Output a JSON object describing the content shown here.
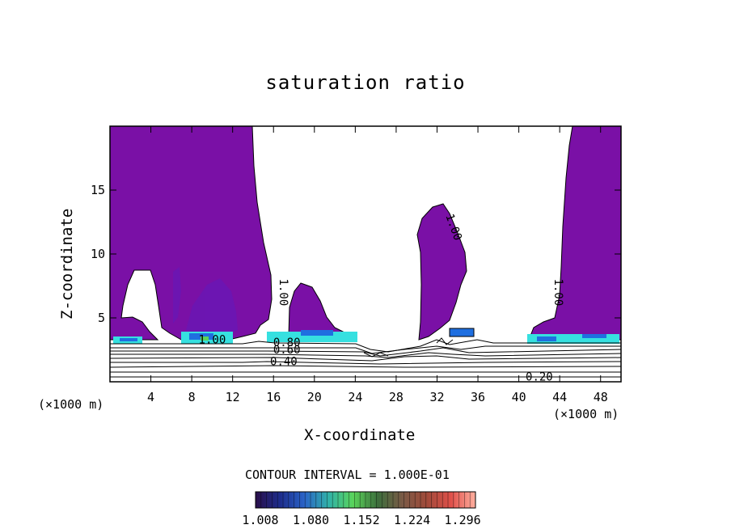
{
  "chart_data": {
    "type": "heatmap",
    "title": "saturation ratio",
    "xlabel": "X-coordinate",
    "ylabel": "Z-coordinate",
    "x_unit_label": "(×1000 m)",
    "xlim": [
      0,
      50
    ],
    "ylim": [
      0,
      20
    ],
    "x_ticks": [
      4,
      8,
      12,
      16,
      20,
      24,
      28,
      32,
      36,
      40,
      44,
      48
    ],
    "y_ticks": [
      5,
      10,
      15
    ],
    "contour_interval_label": "CONTOUR INTERVAL = 1.000E-01",
    "contour_labels": [
      {
        "text": "1.00",
        "x": 10.0,
        "z": 3.0
      },
      {
        "text": "0.80",
        "x": 17.3,
        "z": 2.8
      },
      {
        "text": "0.60",
        "x": 17.3,
        "z": 2.2
      },
      {
        "text": "0.40",
        "x": 17.0,
        "z": 1.3
      },
      {
        "text": "0.20",
        "x": 42.0,
        "z": 0.1
      },
      {
        "text": "1.00",
        "x": 16.6,
        "z": 7.0
      },
      {
        "text": "1.00",
        "x": 33.3,
        "z": 12.0
      },
      {
        "text": "1.00",
        "x": 43.5,
        "z": 7.0
      }
    ],
    "colorbar": {
      "ticks": [
        "1.008",
        "1.080",
        "1.152",
        "1.224",
        "1.296"
      ],
      "colors": [
        "#2a0f4a",
        "#1d2c8c",
        "#2a64c8",
        "#31b2a8",
        "#5ad45a",
        "#3c6e3c",
        "#7a5a46",
        "#a04a3a",
        "#e0504a",
        "#ffb0a0"
      ]
    },
    "colors": {
      "supersaturated_fill": "#7a10a6",
      "high_band": "#36e0e0",
      "medium_band": "#1f6fe0",
      "contour_line": "#000000"
    }
  }
}
